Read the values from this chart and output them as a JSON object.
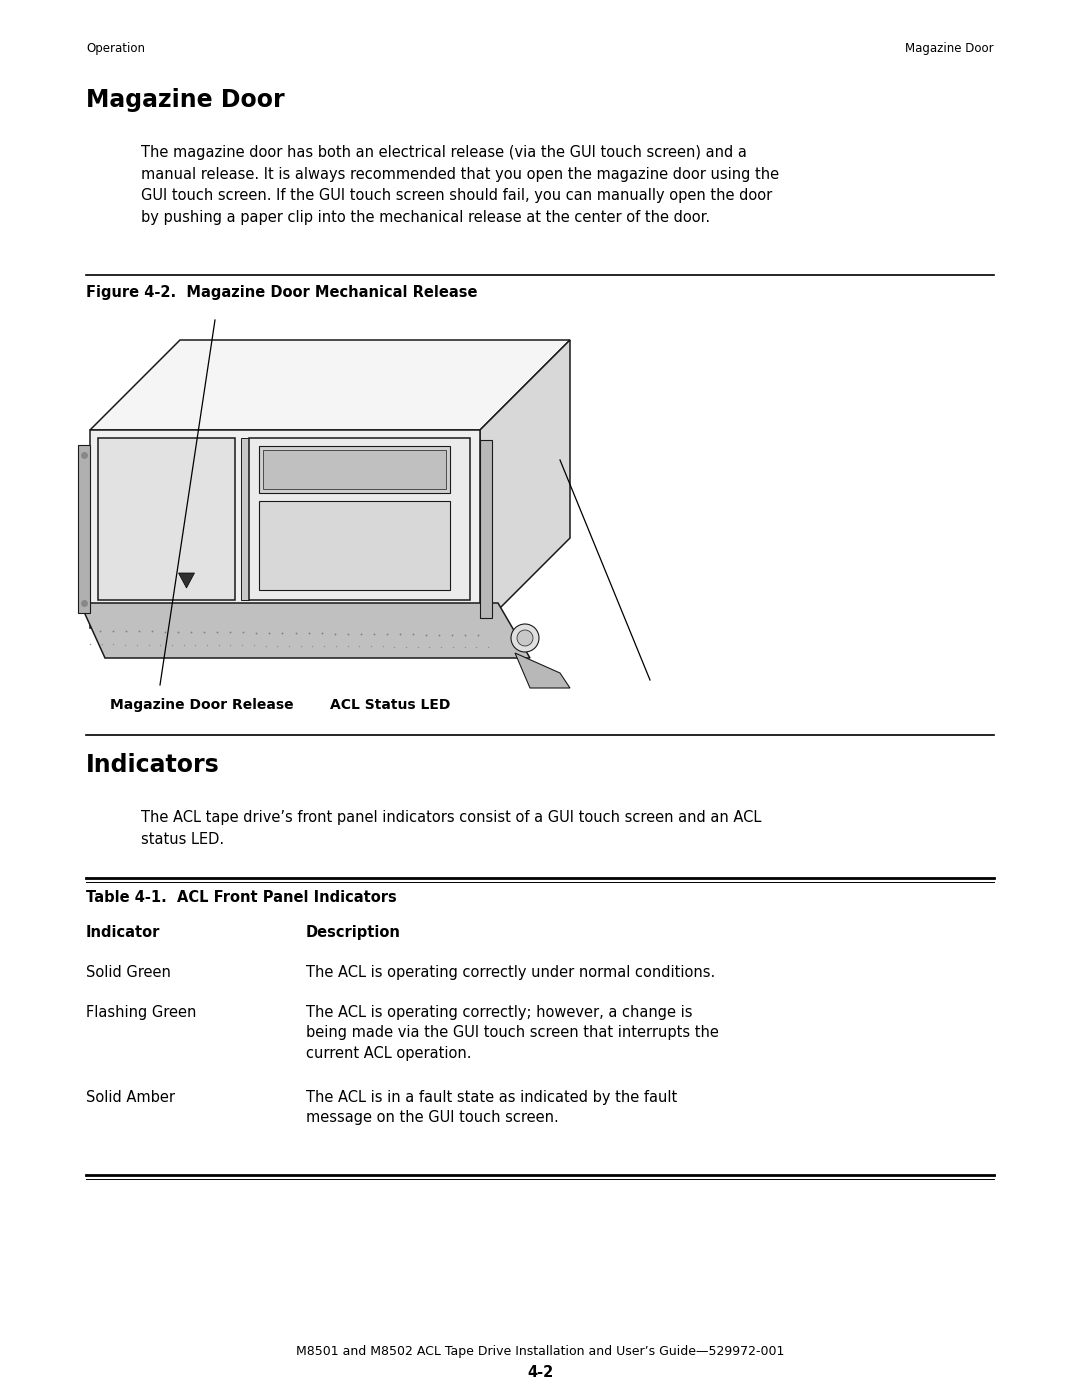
{
  "bg_color": "#ffffff",
  "page_width": 10.8,
  "page_height": 13.97,
  "header_left": "Operation",
  "header_right": "Magazine Door",
  "header_fontsize": 8.5,
  "section1_title": "Magazine Door",
  "section1_title_fontsize": 17,
  "section1_body": "The magazine door has both an electrical release (via the GUI touch screen) and a\nmanual release. It is always recommended that you open the magazine door using the\nGUI touch screen. If the GUI touch screen should fail, you can manually open the door\nby pushing a paper clip into the mechanical release at the center of the door.",
  "section1_body_fontsize": 10.5,
  "fig_caption": "Figure 4-2.  Magazine Door Mechanical Release",
  "fig_caption_fontsize": 10.5,
  "section2_title": "Indicators",
  "section2_title_fontsize": 17,
  "section2_body": "The ACL tape drive’s front panel indicators consist of a GUI touch screen and an ACL\nstatus LED.",
  "section2_body_fontsize": 10.5,
  "table_title": "Table 4-1.  ACL Front Panel Indicators",
  "table_title_fontsize": 10.5,
  "col1_header": "Indicator",
  "col2_header": "Description",
  "col_header_fontsize": 10.5,
  "table_rows": [
    {
      "col1": "Solid Green",
      "col2": "The ACL is operating correctly under normal conditions."
    },
    {
      "col1": "Flashing Green",
      "col2": "The ACL is operating correctly; however, a change is\nbeing made via the GUI touch screen that interrupts the\ncurrent ACL operation."
    },
    {
      "col1": "Solid Amber",
      "col2": "The ACL is in a fault state as indicated by the fault\nmessage on the GUI touch screen."
    }
  ],
  "table_row_fontsize": 10.5,
  "footer_line1": "M8501 and M8502 ACL Tape Drive Installation and User’s Guide—529972-001",
  "footer_line2": "4-2",
  "footer_fontsize": 9
}
